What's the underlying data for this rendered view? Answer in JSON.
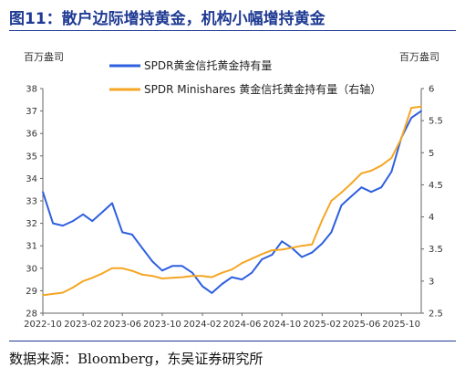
{
  "figure": {
    "title": "图11：散户边际增持黄金，机构小幅增持黄金",
    "source": "数据来源：Bloomberg，东吴证券研究所"
  },
  "chart_data": {
    "type": "line",
    "left_unit": "百万盎司",
    "right_unit": "百万盎司",
    "x_ticks": [
      "2022-10",
      "2023-02",
      "2023-06",
      "2023-10",
      "2024-02",
      "2024-06",
      "2024-10",
      "2025-02",
      "2025-06",
      "2025-10"
    ],
    "y_left": {
      "ticks": [
        "28",
        "29",
        "30",
        "31",
        "32",
        "33",
        "34",
        "35",
        "36",
        "37",
        "38"
      ],
      "lim": [
        28,
        38
      ]
    },
    "y_right": {
      "ticks": [
        "2.5",
        "3",
        "3.5",
        "4",
        "4.5",
        "5",
        "5.5",
        "6"
      ],
      "lim": [
        2.5,
        6
      ]
    },
    "legend_position": "top-center",
    "series": [
      {
        "name": "SPDR黄金信托黄金持有量",
        "axis": "left",
        "color": "#2f5fe0",
        "x": [
          "2022-10-01",
          "2022-11-01",
          "2022-12-01",
          "2023-01-01",
          "2023-02-01",
          "2023-03-01",
          "2023-04-01",
          "2023-05-01",
          "2023-06-01",
          "2023-07-01",
          "2023-08-01",
          "2023-09-01",
          "2023-10-01",
          "2023-11-01",
          "2023-12-01",
          "2024-01-01",
          "2024-02-01",
          "2024-03-01",
          "2024-04-01",
          "2024-05-01",
          "2024-06-01",
          "2024-07-01",
          "2024-08-01",
          "2024-09-01",
          "2024-10-01",
          "2024-11-01",
          "2024-12-01",
          "2025-01-01",
          "2025-02-01",
          "2025-03-01",
          "2025-04-01",
          "2025-05-01",
          "2025-06-01",
          "2025-07-01",
          "2025-08-01",
          "2025-09-01",
          "2025-10-01",
          "2025-11-01",
          "2025-12-01"
        ],
        "values": [
          33.4,
          32.0,
          31.9,
          32.1,
          32.4,
          32.1,
          32.5,
          32.9,
          31.6,
          31.5,
          30.9,
          30.3,
          29.9,
          30.1,
          30.1,
          29.8,
          29.2,
          28.9,
          29.3,
          29.6,
          29.5,
          29.8,
          30.4,
          30.6,
          31.2,
          30.9,
          30.5,
          30.7,
          31.1,
          31.6,
          32.8,
          33.2,
          33.6,
          33.4,
          33.6,
          34.3,
          35.8,
          36.7,
          37.0
        ]
      },
      {
        "name": "SPDR Minishares 黄金信托黄金持有量（右轴）",
        "axis": "right",
        "color": "#f5a623",
        "x": [
          "2022-10-01",
          "2022-11-01",
          "2022-12-01",
          "2023-01-01",
          "2023-02-01",
          "2023-03-01",
          "2023-04-01",
          "2023-05-01",
          "2023-06-01",
          "2023-07-01",
          "2023-08-01",
          "2023-09-01",
          "2023-10-01",
          "2023-11-01",
          "2023-12-01",
          "2024-01-01",
          "2024-02-01",
          "2024-03-01",
          "2024-04-01",
          "2024-05-01",
          "2024-06-01",
          "2024-07-01",
          "2024-08-01",
          "2024-09-01",
          "2024-10-01",
          "2024-11-01",
          "2024-12-01",
          "2025-01-01",
          "2025-02-01",
          "2025-03-01",
          "2025-04-01",
          "2025-05-01",
          "2025-06-01",
          "2025-07-01",
          "2025-08-01",
          "2025-09-01",
          "2025-10-01",
          "2025-11-01",
          "2025-12-01"
        ],
        "values": [
          2.78,
          2.8,
          2.82,
          2.9,
          3.0,
          3.05,
          3.12,
          3.2,
          3.2,
          3.16,
          3.1,
          3.08,
          3.04,
          3.05,
          3.06,
          3.08,
          3.08,
          3.06,
          3.13,
          3.18,
          3.28,
          3.35,
          3.42,
          3.48,
          3.49,
          3.52,
          3.55,
          3.57,
          3.95,
          4.25,
          4.38,
          4.52,
          4.68,
          4.72,
          4.8,
          4.92,
          5.22,
          5.7,
          5.72
        ]
      }
    ]
  }
}
